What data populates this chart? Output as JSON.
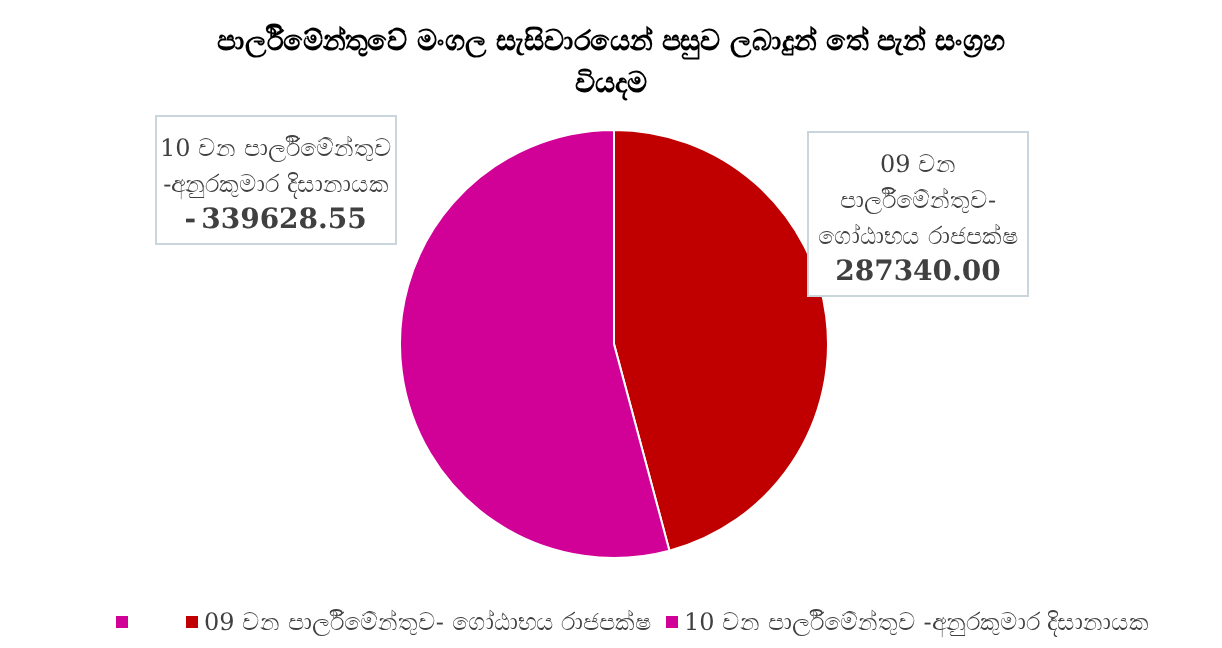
{
  "chart_data": {
    "type": "pie",
    "title": "පාර්ලිමේන්තුවේ මංගල සැසිවාරයෙන්  පසුව ලබාදුන් තේ පැන් සංග්‍රහ වියදම",
    "categories": [
      "09 වන පාර්ලිමේන්තුව- ගෝඨාභය රාජපක්ෂ",
      "10 වන පාර්ලිමේන්තුව -අනුරකුමාර දිසානායක"
    ],
    "values": [
      287340.0,
      339628.55
    ],
    "colors": [
      "#c00000",
      "#d10097"
    ],
    "value_labels": [
      "287340.00",
      "339628.55"
    ],
    "annotations": [
      "-"
    ],
    "legend": "bottom"
  }
}
